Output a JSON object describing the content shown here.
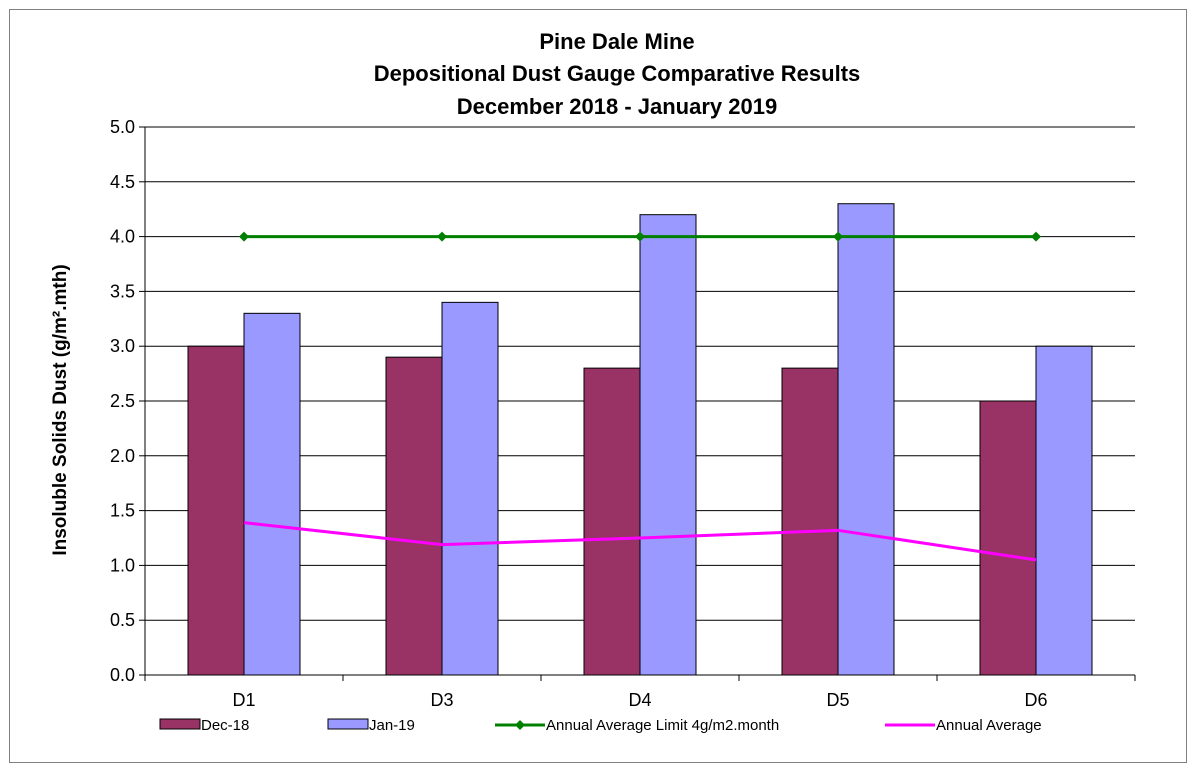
{
  "chart_data": {
    "type": "bar",
    "title_lines": [
      "Pine Dale Mine",
      "Depositional Dust Gauge Comparative  Results",
      "December 2018 - January 2019"
    ],
    "ylabel": "Insoluble Solids Dust (g/m².mth)",
    "xlabel": "",
    "categories": [
      "D1",
      "D3",
      "D4",
      "D5",
      "D6"
    ],
    "ylim": [
      0,
      5
    ],
    "ytick_step": 0.5,
    "yticks": [
      "0.0",
      "0.5",
      "1.0",
      "1.5",
      "2.0",
      "2.5",
      "3.0",
      "3.5",
      "4.0",
      "4.5",
      "5.0"
    ],
    "grid": true,
    "legend_position": "bottom",
    "series": [
      {
        "name": "Dec-18",
        "type": "bar",
        "color": "#993366",
        "values": [
          3.0,
          2.9,
          2.8,
          2.8,
          2.5
        ]
      },
      {
        "name": "Jan-19",
        "type": "bar",
        "color": "#9999ff",
        "values": [
          3.3,
          3.4,
          4.2,
          4.3,
          3.0
        ]
      },
      {
        "name": "Annual Average Limit 4g/m2.month",
        "type": "line",
        "marker": "diamond",
        "color": "#008000",
        "values": [
          4.0,
          4.0,
          4.0,
          4.0,
          4.0
        ]
      },
      {
        "name": "Annual Average",
        "type": "line",
        "marker": "none",
        "color": "#ff00ff",
        "values": [
          1.39,
          1.19,
          1.25,
          1.32,
          1.05
        ]
      }
    ]
  }
}
